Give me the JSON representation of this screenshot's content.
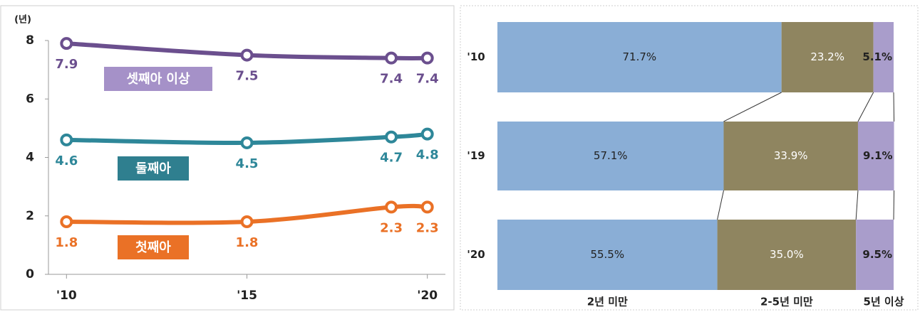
{
  "chart_data": [
    {
      "type": "line",
      "y_unit_label": "(년)",
      "x": [
        2010,
        2015,
        2019,
        2020
      ],
      "xlim": [
        2009.5,
        2020.5
      ],
      "xticks": [
        {
          "value": 2010,
          "label": "'10"
        },
        {
          "value": 2015,
          "label": "'15"
        },
        {
          "value": 2020,
          "label": "'20"
        }
      ],
      "ylim": [
        0,
        8
      ],
      "yticks": [
        0,
        2,
        4,
        6,
        8
      ],
      "series": [
        {
          "name": "셋째아 이상",
          "color": "#6b4f8e",
          "legend_color": "#a591c8",
          "values": [
            7.9,
            7.5,
            7.4,
            7.4
          ]
        },
        {
          "name": "둘째아",
          "color": "#2e8799",
          "legend_color": "#2f7f8f",
          "values": [
            4.6,
            4.5,
            4.7,
            4.8
          ]
        },
        {
          "name": "첫째아",
          "color": "#ea7126",
          "legend_color": "#ea7126",
          "values": [
            1.8,
            1.8,
            2.3,
            2.3
          ]
        }
      ]
    },
    {
      "type": "stacked_barh",
      "categories": [
        "'10",
        "'19",
        "'20"
      ],
      "xlim": [
        0,
        100
      ],
      "series": [
        {
          "name": "2년 미만",
          "color": "#8aaed6",
          "values": [
            71.7,
            57.1,
            55.5
          ],
          "value_labels": [
            "71.7%",
            "57.1%",
            "55.5%"
          ]
        },
        {
          "name": "2-5년 미만",
          "color": "#8f8560",
          "values": [
            23.2,
            33.9,
            35.0
          ],
          "value_labels": [
            "23.2%",
            "33.9%",
            "35.0%"
          ]
        },
        {
          "name": "5년 이상",
          "color": "#a99dcb",
          "values": [
            5.1,
            9.1,
            9.5
          ],
          "value_labels": [
            "5.1%",
            "9.1%",
            "9.5%"
          ]
        }
      ]
    }
  ]
}
